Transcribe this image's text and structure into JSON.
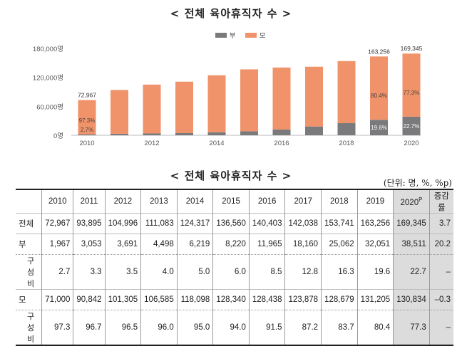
{
  "chart_title": "< 전체 육아휴직자 수 >",
  "table_title": "< 전체 육아휴직자 수 >",
  "unit_note": "(단위: 명, %, %p)",
  "chart_data": {
    "type": "bar",
    "stacked": true,
    "categories": [
      "2010",
      "2011",
      "2012",
      "2013",
      "2014",
      "2015",
      "2016",
      "2017",
      "2018",
      "2019",
      "2020"
    ],
    "x_tick_labels": [
      "2010",
      "2012",
      "2014",
      "2016",
      "2018",
      "2020"
    ],
    "y_ticks": [
      "0명",
      "60,000명",
      "120,000명",
      "180,000명"
    ],
    "y_tick_values": [
      0,
      60000,
      120000,
      180000
    ],
    "ylim": [
      0,
      180000
    ],
    "series": [
      {
        "name": "부",
        "color": "#7a7a7d",
        "values": [
          1967,
          3053,
          3691,
          4498,
          6219,
          8220,
          11965,
          18160,
          25062,
          32051,
          38511
        ]
      },
      {
        "name": "모",
        "color": "#f0936a",
        "values": [
          71000,
          90842,
          101305,
          106585,
          118098,
          128340,
          128438,
          123878,
          128679,
          131205,
          130834
        ]
      }
    ],
    "annotations": [
      {
        "index": 0,
        "total": "72,967",
        "mother_pct": "97.3%",
        "father_pct": "2.7%"
      },
      {
        "index": 9,
        "total": "163,256",
        "mother_pct": "80.4%",
        "father_pct": "19.6%"
      },
      {
        "index": 10,
        "total": "169,345",
        "mother_pct": "77.3%",
        "father_pct": "22.7%"
      }
    ],
    "legend_position": "top-center",
    "grid": false
  },
  "table": {
    "headers": [
      "2010",
      "2011",
      "2012",
      "2013",
      "2014",
      "2015",
      "2016",
      "2017",
      "2018",
      "2019",
      "2020",
      "증감률"
    ],
    "sup_2020": "P",
    "rows": [
      {
        "label": "전체",
        "values": [
          "72,967",
          "93,895",
          "104,996",
          "111,083",
          "124,317",
          "136,560",
          "140,403",
          "142,038",
          "153,741",
          "163,256",
          "169,345",
          "3.7"
        ]
      },
      {
        "label": "부",
        "values": [
          "1,967",
          "3,053",
          "3,691",
          "4,498",
          "6,219",
          "8,220",
          "11,965",
          "18,160",
          "25,062",
          "32,051",
          "38,511",
          "20.2"
        ]
      },
      {
        "label": "구성비",
        "values": [
          "2.7",
          "3.3",
          "3.5",
          "4.0",
          "5.0",
          "6.0",
          "8.5",
          "12.8",
          "16.3",
          "19.6",
          "22.7",
          "–"
        ]
      },
      {
        "label": "모",
        "values": [
          "71,000",
          "90,842",
          "101,305",
          "106,585",
          "118,098",
          "128,340",
          "128,438",
          "123,878",
          "128,679",
          "131,205",
          "130,834",
          "–0.3"
        ]
      },
      {
        "label": "구성비",
        "values": [
          "97.3",
          "96.7",
          "96.5",
          "96.0",
          "95.0",
          "94.0",
          "91.5",
          "87.2",
          "83.7",
          "80.4",
          "77.3",
          "–"
        ]
      }
    ]
  }
}
